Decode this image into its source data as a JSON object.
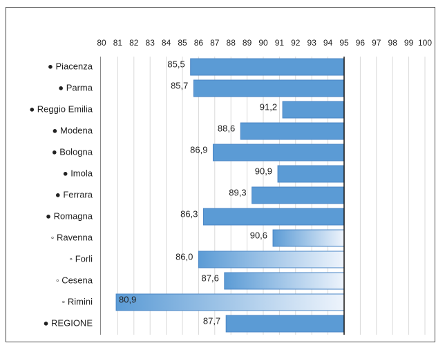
{
  "chart_data": {
    "type": "bar",
    "categories": [
      "● Piacenza",
      "● Parma",
      "● Reggio Emilia",
      "● Modena",
      "● Bologna",
      "● Imola",
      "● Ferrara",
      "● Romagna",
      "◦ Ravenna",
      "◦ Forli",
      "◦ Cesena",
      "◦ Rimini",
      "● REGIONE"
    ],
    "values": [
      85.5,
      85.7,
      91.2,
      88.6,
      86.9,
      90.9,
      89.3,
      86.3,
      90.6,
      86.0,
      87.6,
      80.9,
      87.7
    ],
    "value_labels": [
      "85,5",
      "85,7",
      "91,2",
      "88,6",
      "86,9",
      "90,9",
      "89,3",
      "86,3",
      "90,6",
      "86,0",
      "87,6",
      "80,9",
      "87,7"
    ],
    "gradient": [
      false,
      false,
      false,
      false,
      false,
      false,
      false,
      false,
      true,
      true,
      true,
      true,
      false
    ],
    "baseline": 95,
    "color": "#5b9bd5",
    "gradient_color": "#eef4fc",
    "edge_color": "#4a86c5",
    "xlim": [
      80,
      100
    ],
    "xticks": [
      80,
      81,
      82,
      83,
      84,
      85,
      86,
      87,
      88,
      89,
      90,
      91,
      92,
      93,
      94,
      95,
      96,
      97,
      98,
      99,
      100
    ],
    "grid": true
  }
}
